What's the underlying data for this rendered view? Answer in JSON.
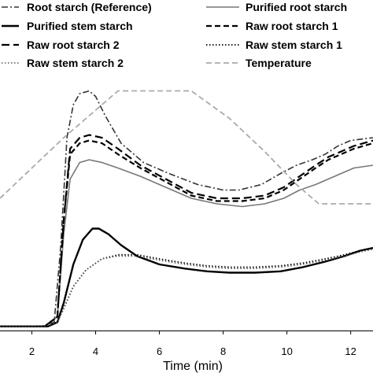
{
  "chart_data": {
    "type": "line",
    "xlabel": "Time (min)",
    "xlim": [
      1.0,
      12.7
    ],
    "xticks": [
      2,
      4,
      6,
      8,
      10,
      12
    ],
    "ylim": [
      0,
      100
    ],
    "grid": false,
    "legend_position": "top",
    "series": [
      {
        "name": "Root starch (Reference)",
        "color": "#333333",
        "style": "dashdot",
        "points": [
          [
            1.0,
            1.5
          ],
          [
            2.3,
            1.5
          ],
          [
            2.7,
            3
          ],
          [
            2.9,
            30
          ],
          [
            3.1,
            70
          ],
          [
            3.3,
            82
          ],
          [
            3.5,
            86
          ],
          [
            3.8,
            87
          ],
          [
            4.0,
            85
          ],
          [
            4.3,
            78
          ],
          [
            4.8,
            68
          ],
          [
            5.5,
            61
          ],
          [
            6.3,
            57
          ],
          [
            7.2,
            53
          ],
          [
            8.0,
            51
          ],
          [
            8.5,
            51
          ],
          [
            9.2,
            53
          ],
          [
            9.8,
            57
          ],
          [
            10.3,
            60
          ],
          [
            10.8,
            62
          ],
          [
            11.2,
            64
          ],
          [
            11.6,
            67
          ],
          [
            12.0,
            69
          ],
          [
            12.7,
            70
          ]
        ]
      },
      {
        "name": "Purified root starch",
        "color": "#777777",
        "style": "solid",
        "width": 1.6,
        "points": [
          [
            1.0,
            1.5
          ],
          [
            2.4,
            1.5
          ],
          [
            2.8,
            5
          ],
          [
            3.0,
            35
          ],
          [
            3.2,
            55
          ],
          [
            3.5,
            61
          ],
          [
            3.8,
            62
          ],
          [
            4.2,
            61
          ],
          [
            4.7,
            59
          ],
          [
            5.4,
            56
          ],
          [
            6.2,
            52
          ],
          [
            7.0,
            48
          ],
          [
            7.8,
            46
          ],
          [
            8.6,
            45
          ],
          [
            9.3,
            46
          ],
          [
            9.9,
            48
          ],
          [
            10.4,
            51
          ],
          [
            10.9,
            53
          ],
          [
            11.3,
            55
          ],
          [
            11.7,
            57
          ],
          [
            12.1,
            59
          ],
          [
            12.7,
            60
          ]
        ]
      },
      {
        "name": "Purified stem starch",
        "color": "#000000",
        "style": "solid",
        "width": 2.4,
        "points": [
          [
            1.0,
            1.5
          ],
          [
            2.5,
            1.5
          ],
          [
            2.8,
            3
          ],
          [
            3.0,
            10
          ],
          [
            3.3,
            24
          ],
          [
            3.6,
            33
          ],
          [
            3.9,
            37
          ],
          [
            4.1,
            37
          ],
          [
            4.4,
            35
          ],
          [
            4.8,
            31
          ],
          [
            5.3,
            27
          ],
          [
            6.0,
            24
          ],
          [
            6.8,
            22.5
          ],
          [
            7.5,
            21.5
          ],
          [
            8.2,
            21
          ],
          [
            9.0,
            21
          ],
          [
            9.8,
            21.5
          ],
          [
            10.5,
            23
          ],
          [
            11.2,
            25
          ],
          [
            11.8,
            27
          ],
          [
            12.3,
            29
          ],
          [
            12.7,
            30
          ]
        ]
      },
      {
        "name": "Raw root starch 1",
        "color": "#000000",
        "style": "dash",
        "width": 2.2,
        "points": [
          [
            1.0,
            1.5
          ],
          [
            2.4,
            1.5
          ],
          [
            2.8,
            5
          ],
          [
            3.0,
            40
          ],
          [
            3.2,
            64
          ],
          [
            3.5,
            68
          ],
          [
            3.8,
            69
          ],
          [
            4.2,
            68
          ],
          [
            4.7,
            64
          ],
          [
            5.4,
            59
          ],
          [
            6.2,
            54
          ],
          [
            7.0,
            49
          ],
          [
            7.8,
            47
          ],
          [
            8.6,
            47
          ],
          [
            9.3,
            48
          ],
          [
            9.9,
            51
          ],
          [
            10.4,
            55
          ],
          [
            10.9,
            59
          ],
          [
            11.3,
            62
          ],
          [
            11.7,
            64
          ],
          [
            12.1,
            66
          ],
          [
            12.7,
            68
          ]
        ]
      },
      {
        "name": "Raw root starch 2",
        "color": "#000000",
        "style": "longdash",
        "width": 2.2,
        "points": [
          [
            1.0,
            1.5
          ],
          [
            2.4,
            1.5
          ],
          [
            2.8,
            5
          ],
          [
            3.0,
            40
          ],
          [
            3.2,
            66
          ],
          [
            3.5,
            70
          ],
          [
            3.8,
            71
          ],
          [
            4.2,
            70
          ],
          [
            4.7,
            66
          ],
          [
            5.4,
            60
          ],
          [
            6.2,
            55
          ],
          [
            7.0,
            50
          ],
          [
            7.8,
            48
          ],
          [
            8.6,
            48
          ],
          [
            9.3,
            49
          ],
          [
            9.9,
            52
          ],
          [
            10.4,
            56
          ],
          [
            10.9,
            60
          ],
          [
            11.3,
            63
          ],
          [
            11.7,
            65
          ],
          [
            12.1,
            67
          ],
          [
            12.7,
            69
          ]
        ]
      },
      {
        "name": "Raw stem starch 1",
        "color": "#000000",
        "style": "dot",
        "width": 1.8,
        "points": [
          [
            1.0,
            1.5
          ],
          [
            2.4,
            1.5
          ],
          [
            2.8,
            3
          ],
          [
            3.0,
            8
          ],
          [
            3.3,
            16
          ],
          [
            3.7,
            22
          ],
          [
            4.2,
            26
          ],
          [
            4.7,
            27.5
          ],
          [
            5.3,
            27.5
          ],
          [
            6.0,
            26
          ],
          [
            6.8,
            24.5
          ],
          [
            7.5,
            23.5
          ],
          [
            8.2,
            23
          ],
          [
            9.0,
            23
          ],
          [
            9.8,
            23.5
          ],
          [
            10.5,
            24.5
          ],
          [
            11.2,
            26
          ],
          [
            11.8,
            27.5
          ],
          [
            12.3,
            29
          ],
          [
            12.7,
            30
          ]
        ]
      },
      {
        "name": "Raw stem starch 2",
        "color": "#555555",
        "style": "dot",
        "width": 1.4,
        "points": [
          [
            1.0,
            1.5
          ],
          [
            2.4,
            1.5
          ],
          [
            2.8,
            3
          ],
          [
            3.0,
            8
          ],
          [
            3.3,
            16
          ],
          [
            3.7,
            22
          ],
          [
            4.2,
            26
          ],
          [
            4.7,
            27
          ],
          [
            5.3,
            27
          ],
          [
            6.0,
            25.5
          ],
          [
            6.8,
            24
          ],
          [
            7.5,
            23
          ],
          [
            8.2,
            22.5
          ],
          [
            9.0,
            22.5
          ],
          [
            9.8,
            23
          ],
          [
            10.5,
            24
          ],
          [
            11.2,
            25.5
          ],
          [
            11.8,
            27
          ],
          [
            12.3,
            28.5
          ],
          [
            12.7,
            29.5
          ]
        ]
      },
      {
        "name": "Temperature",
        "color": "#aaaaaa",
        "style": "dash",
        "width": 1.8,
        "points": [
          [
            1.0,
            48
          ],
          [
            2.0,
            59
          ],
          [
            3.0,
            70
          ],
          [
            4.0,
            80
          ],
          [
            4.7,
            87
          ],
          [
            7.0,
            87
          ],
          [
            8.2,
            77
          ],
          [
            9.3,
            65
          ],
          [
            10.3,
            53
          ],
          [
            11.0,
            46
          ],
          [
            12.7,
            46
          ]
        ]
      }
    ]
  }
}
